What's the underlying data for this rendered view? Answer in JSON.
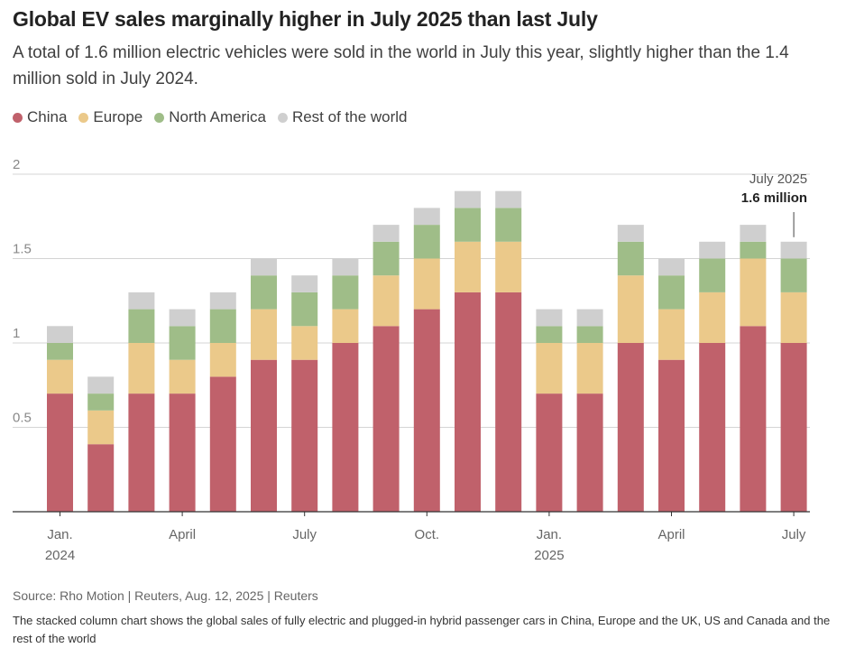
{
  "header": {
    "title": "Global EV sales marginally higher in July 2025 than last July",
    "subtitle": "A total of 1.6 million electric vehicles were sold in the world in July this year, slightly higher than the 1.4 million sold in July 2024."
  },
  "colors": {
    "China": "#c0616b",
    "Europe": "#ebc98a",
    "North America": "#9fbd88",
    "Rest of the world": "#cfcfcf"
  },
  "chart_data": {
    "type": "bar",
    "stacked": true,
    "unit": "million",
    "ylim": [
      0,
      2
    ],
    "yticks": [
      0.5,
      1,
      1.5,
      2
    ],
    "ytick_labels": [
      "0.5",
      "1",
      "1.5",
      "2"
    ],
    "grid": true,
    "legend_position": "top-left",
    "months": [
      "Jan 2024",
      "Feb 2024",
      "Mar 2024",
      "Apr 2024",
      "May 2024",
      "Jun 2024",
      "Jul 2024",
      "Aug 2024",
      "Sep 2024",
      "Oct 2024",
      "Nov 2024",
      "Dec 2024",
      "Jan 2025",
      "Feb 2025",
      "Mar 2025",
      "Apr 2025",
      "May 2025",
      "Jun 2025",
      "Jul 2025"
    ],
    "x_ticks": [
      {
        "index": 0,
        "label": "Jan.",
        "sublabel": "2024"
      },
      {
        "index": 3,
        "label": "April",
        "sublabel": ""
      },
      {
        "index": 6,
        "label": "July",
        "sublabel": ""
      },
      {
        "index": 9,
        "label": "Oct.",
        "sublabel": ""
      },
      {
        "index": 12,
        "label": "Jan.",
        "sublabel": "2025"
      },
      {
        "index": 15,
        "label": "April",
        "sublabel": ""
      },
      {
        "index": 18,
        "label": "July",
        "sublabel": ""
      }
    ],
    "series": [
      {
        "name": "China",
        "values": [
          0.7,
          0.4,
          0.7,
          0.7,
          0.8,
          0.9,
          0.9,
          1.0,
          1.1,
          1.2,
          1.3,
          1.3,
          0.7,
          0.7,
          1.0,
          0.9,
          1.0,
          1.1,
          1.0
        ]
      },
      {
        "name": "Europe",
        "values": [
          0.2,
          0.2,
          0.3,
          0.2,
          0.2,
          0.3,
          0.2,
          0.2,
          0.3,
          0.3,
          0.3,
          0.3,
          0.3,
          0.3,
          0.4,
          0.3,
          0.3,
          0.4,
          0.3
        ]
      },
      {
        "name": "North America",
        "values": [
          0.1,
          0.1,
          0.2,
          0.2,
          0.2,
          0.2,
          0.2,
          0.2,
          0.2,
          0.2,
          0.2,
          0.2,
          0.1,
          0.1,
          0.2,
          0.2,
          0.2,
          0.1,
          0.2
        ]
      },
      {
        "name": "Rest of the world",
        "values": [
          0.1,
          0.1,
          0.1,
          0.1,
          0.1,
          0.1,
          0.1,
          0.1,
          0.1,
          0.1,
          0.1,
          0.1,
          0.1,
          0.1,
          0.1,
          0.1,
          0.1,
          0.1,
          0.1
        ]
      }
    ],
    "annotation": {
      "index": 18,
      "line1": "July 2025",
      "line2": "1.6 million"
    }
  },
  "footer": {
    "source": "Source: Rho Motion | Reuters, Aug. 12, 2025 | Reuters",
    "note": "The stacked column chart shows the global sales of fully electric and plugged-in hybrid passenger cars in China, Europe and the UK, US and Canada and the rest of the world"
  }
}
